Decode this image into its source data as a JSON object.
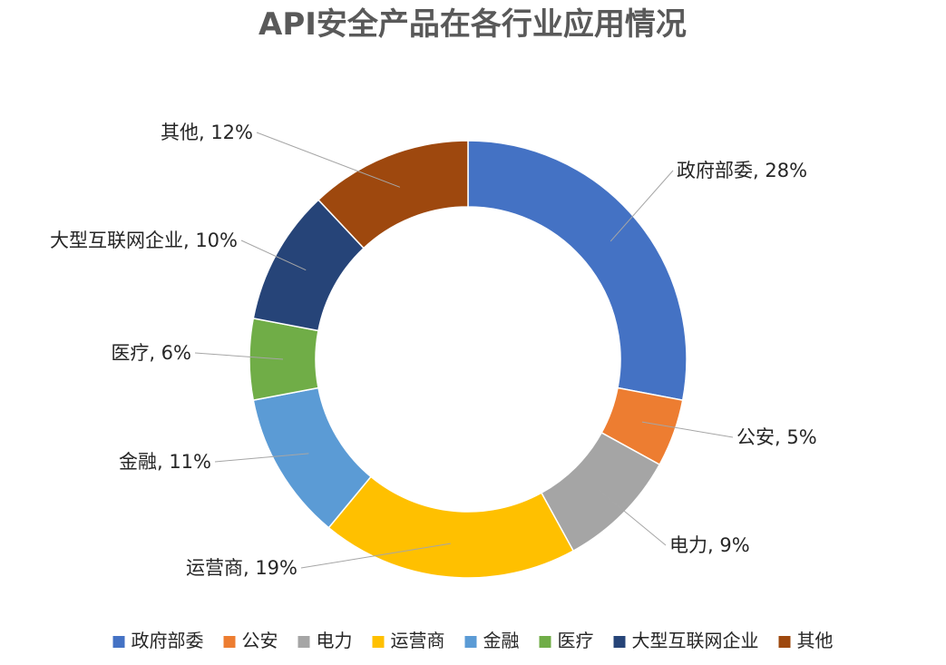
{
  "chart_data": {
    "type": "pie",
    "title": "API安全产品在各行业应用情况",
    "donut": true,
    "legend_position": "bottom",
    "slices": [
      {
        "name": "政府部委",
        "value": 28,
        "label": "政府部委, 28%",
        "color": "#4472C4"
      },
      {
        "name": "公安",
        "value": 5,
        "label": "公安, 5%",
        "color": "#ED7D31"
      },
      {
        "name": "电力",
        "value": 9,
        "label": "电力, 9%",
        "color": "#A5A5A5"
      },
      {
        "name": "运营商",
        "value": 19,
        "label": "运营商, 19%",
        "color": "#FFC000"
      },
      {
        "name": "金融",
        "value": 11,
        "label": "金融, 11%",
        "color": "#5B9BD5"
      },
      {
        "name": "医疗",
        "value": 6,
        "label": "医疗, 6%",
        "color": "#70AD47"
      },
      {
        "name": "大型互联网企业",
        "value": 10,
        "label": "大型互联网企业, 10%",
        "color": "#264478"
      },
      {
        "name": "其他",
        "value": 12,
        "label": "其他, 12%",
        "color": "#9E480E"
      }
    ]
  }
}
